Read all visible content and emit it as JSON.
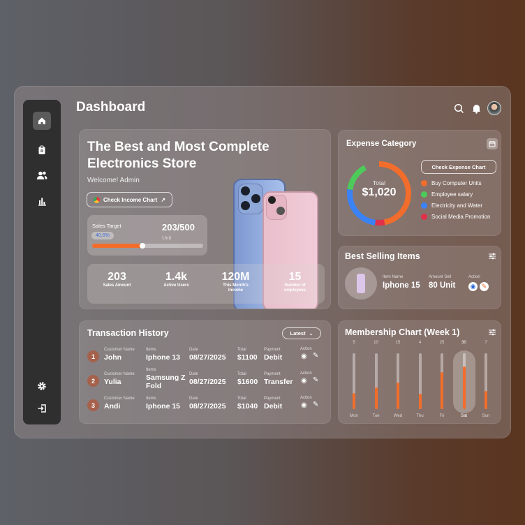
{
  "header": {
    "title": "Dashboard",
    "icons": [
      "search-icon",
      "bell-icon",
      "avatar"
    ]
  },
  "sidebar": {
    "items": [
      {
        "icon": "home-icon",
        "active": true
      },
      {
        "icon": "clipboard-icon"
      },
      {
        "icon": "users-icon"
      },
      {
        "icon": "bar-chart-icon"
      }
    ],
    "bottom": [
      {
        "icon": "gear-icon"
      },
      {
        "icon": "logout-icon"
      }
    ]
  },
  "hero": {
    "title_line1": "The Best and Most Complete",
    "title_line2": "Electronics Store",
    "welcome": "Welcome! Admin",
    "check_income": "Check Income Chart",
    "sales_target": {
      "label": "Sales Target",
      "percent_label": "40,6%",
      "value": "203/500",
      "unit": "Unit",
      "progress": 0.406
    },
    "stats": [
      {
        "value": "203",
        "label": "Sales Amount"
      },
      {
        "value": "1.4k",
        "label": "Active Users"
      },
      {
        "value": "120M",
        "label": "This Month's Income"
      },
      {
        "value": "15",
        "label": "Number of employees"
      }
    ]
  },
  "expense": {
    "title": "Expense Category",
    "button": "Check Expense Chart",
    "total_label": "Total",
    "total": "$1,020",
    "legend": [
      {
        "label": "Buy Computer Units",
        "color": "#f26d2b",
        "share": 0.55
      },
      {
        "label": "Employee salary",
        "color": "#4ccb5a",
        "share": 0.15
      },
      {
        "label": "Electricity and Water",
        "color": "#3b82f6",
        "share": 0.25
      },
      {
        "label": "Social Media Promotion",
        "color": "#e0304a",
        "share": 0.05
      }
    ]
  },
  "best": {
    "title": "Best Selling Items",
    "item_name_label": "Item Name",
    "item_name": "Iphone 15",
    "amount_label": "Amount Sell",
    "amount": "80 Unit",
    "action_label": "Action"
  },
  "transactions": {
    "title": "Transaction History",
    "filter": "Latest",
    "headers": {
      "customer": "Customer Name",
      "items": "Items",
      "date": "Date",
      "total": "Total",
      "payment": "Payment",
      "action": "Action"
    },
    "rows": [
      {
        "n": "1",
        "customer": "John",
        "items": "Iphone 13",
        "date": "08/27/2025",
        "total": "$1100",
        "payment": "Debit"
      },
      {
        "n": "2",
        "customer": "Yulia",
        "items": "Samsung Z Fold",
        "date": "08/27/2025",
        "total": "$1600",
        "payment": "Transfer"
      },
      {
        "n": "3",
        "customer": "Andi",
        "items": "Iphone 15",
        "date": "08/27/2025",
        "total": "$1040",
        "payment": "Debit"
      }
    ]
  },
  "membership": {
    "title": "Membership Chart (Week 1)",
    "highlight": "Sat",
    "days": [
      {
        "day": "Mon",
        "value": 5
      },
      {
        "day": "Tue",
        "value": 10
      },
      {
        "day": "Wed",
        "value": 15
      },
      {
        "day": "Thu",
        "value": 4
      },
      {
        "day": "Fri",
        "value": 25
      },
      {
        "day": "Sat",
        "value": 30
      },
      {
        "day": "Sun",
        "value": 7
      }
    ]
  }
}
